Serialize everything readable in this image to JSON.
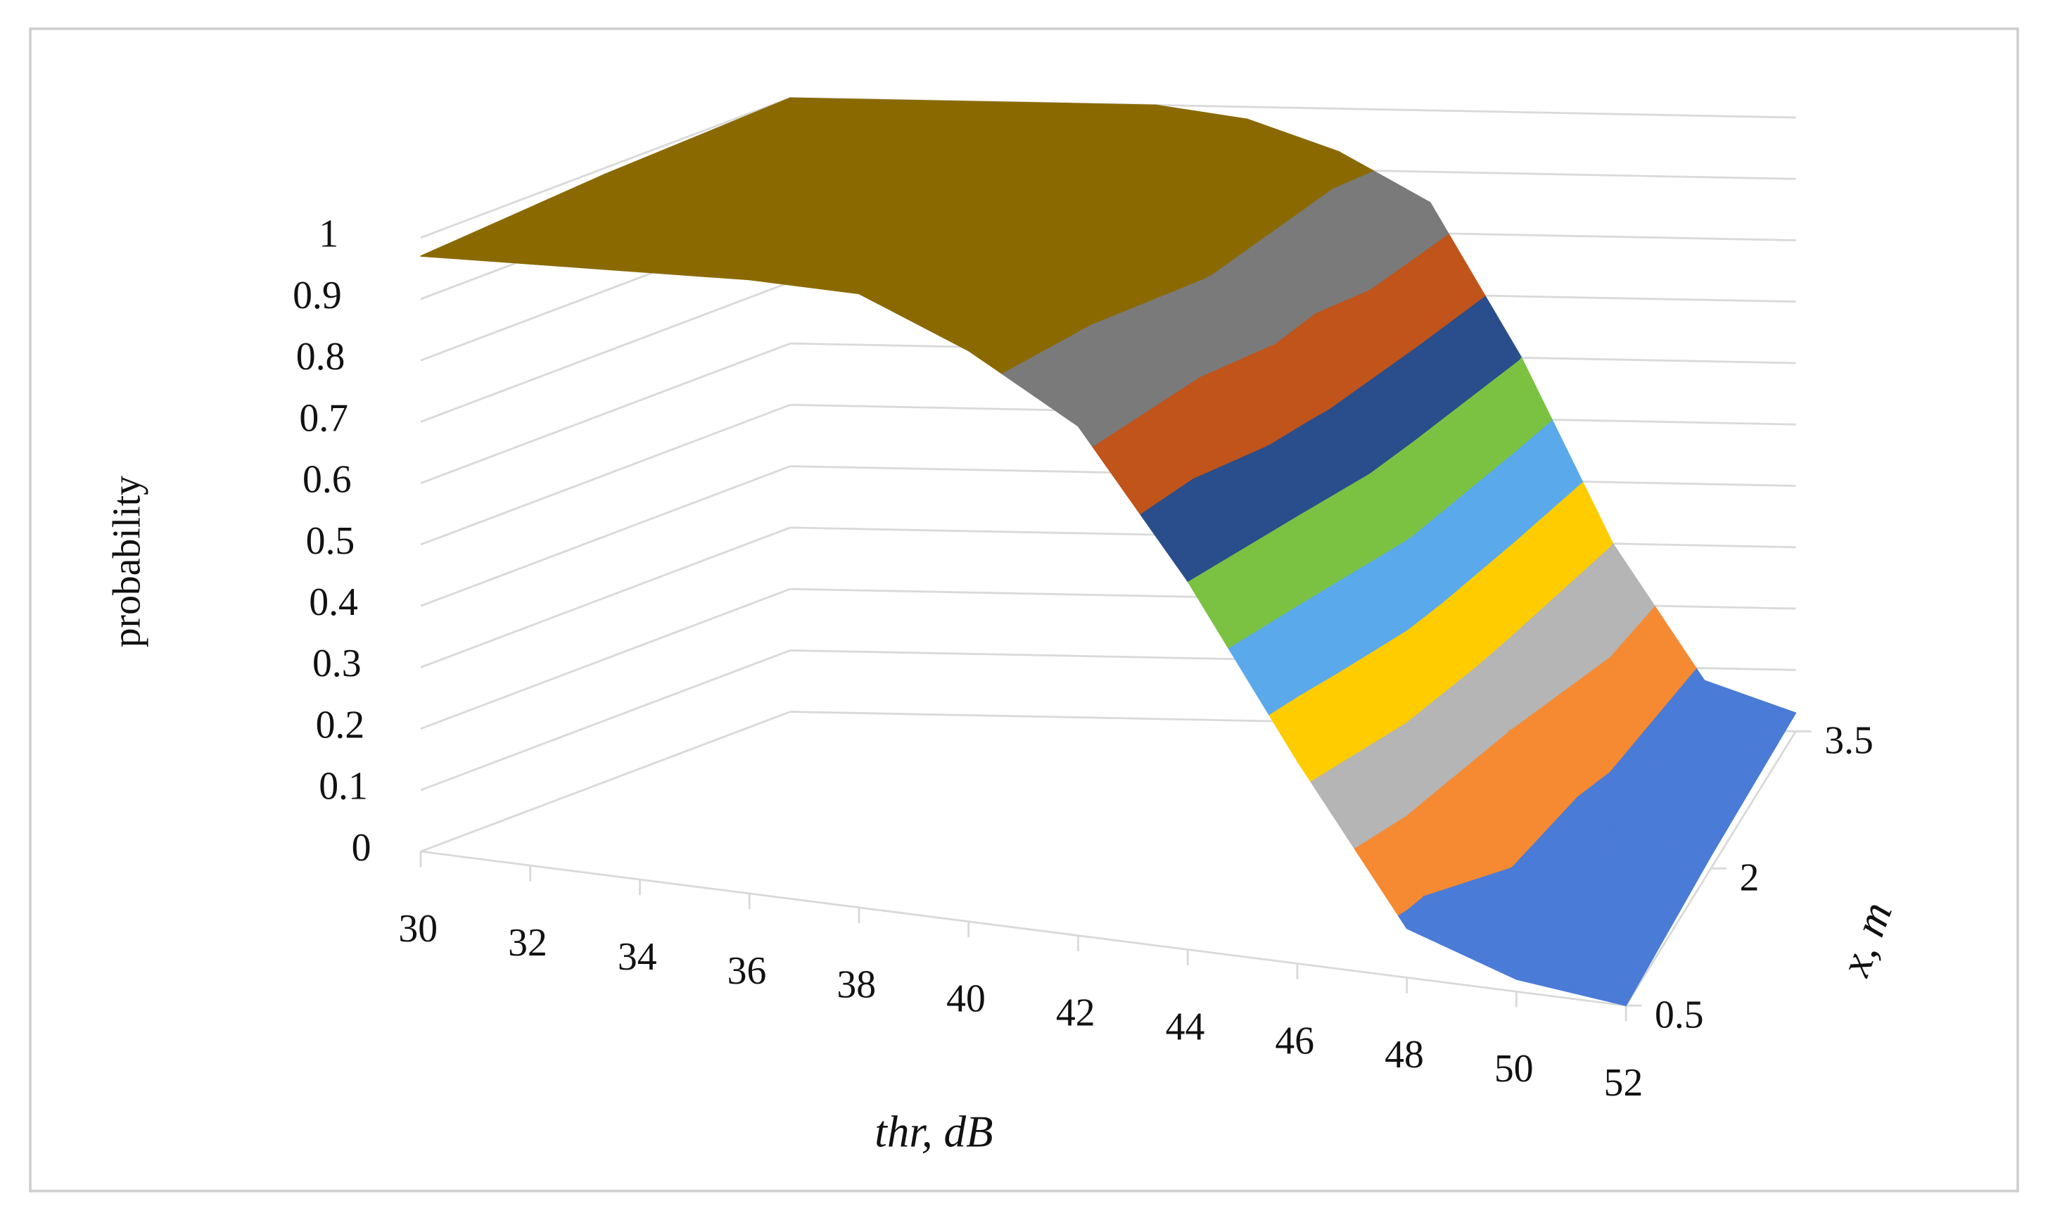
{
  "chart_data": {
    "type": "surface",
    "x_label": "thr, dB",
    "y_label": "probability",
    "depth_label": "x, m",
    "categories": [
      "30",
      "32",
      "34",
      "36",
      "38",
      "40",
      "42",
      "44",
      "46",
      "48",
      "50",
      "52"
    ],
    "series": [
      {
        "name": "0.5",
        "values": [
          0.97,
          0.98,
          0.99,
          1,
          1,
          0.93,
          0.83,
          0.6,
          0.33,
          0.08,
          0.02,
          0
        ]
      },
      {
        "name": "2",
        "values": [
          0.99,
          1,
          1,
          1,
          1,
          0.97,
          0.9,
          0.75,
          0.5,
          0.2,
          0.05,
          0.02
        ]
      },
      {
        "name": "3.5",
        "values": [
          1,
          1,
          1,
          1,
          1,
          0.98,
          0.93,
          0.85,
          0.6,
          0.3,
          0.08,
          0.03
        ]
      }
    ],
    "ylim": [
      0,
      1
    ],
    "yticks": [
      0,
      0.1,
      0.2,
      0.3,
      0.4,
      0.5,
      0.6,
      0.7,
      0.8,
      0.9,
      1
    ],
    "colors": [
      "#4a7bd6",
      "#f58a33",
      "#b5b5b5",
      "#ffcc00",
      "#5aa9ea",
      "#7cc242",
      "#2a4e8c",
      "#c0541a",
      "#7a7a7a",
      "#8a6a00"
    ],
    "grid": true
  }
}
